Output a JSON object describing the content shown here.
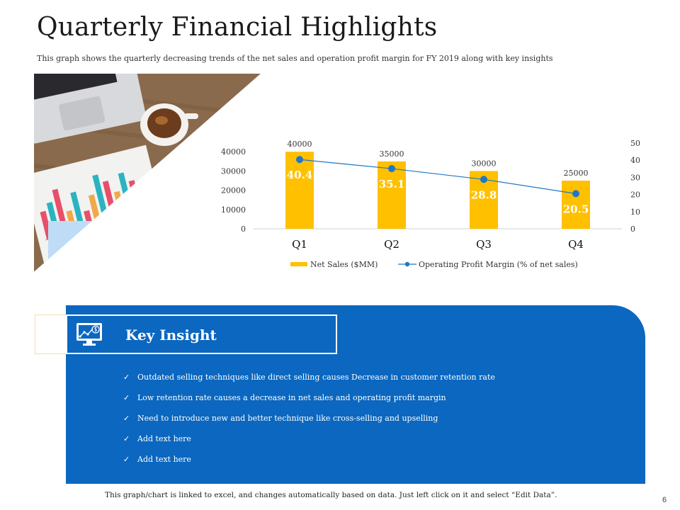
{
  "slide": {
    "title": "Quarterly Financial Highlights",
    "subtitle": "This graph shows the quarterly decreasing trends of the net sales and operation profit margin for FY 2019 along with key insights",
    "footer": "This graph/chart is linked to excel, and changes automatically based on data. Just left click on it and select “Edit Data”.",
    "page_number": "6"
  },
  "insight": {
    "title": "Key Insight",
    "icon": "monitor-dollar-chart-icon",
    "bullets": [
      "Outdated selling techniques like direct selling causes Decrease in customer retention rate",
      "Low retention rate causes a decrease in net sales and operating profit margin",
      "Need to introduce new and better technique like cross-selling and upselling",
      "Add text here",
      "Add text here"
    ],
    "check_mark": "✓"
  },
  "colors": {
    "accent_blue": "#0b67bf",
    "bar_gold": "#ffc000",
    "line_blue": "#1f77c6"
  },
  "chart_data": {
    "type": "bar",
    "categories": [
      "Q1",
      "Q2",
      "Q3",
      "Q4"
    ],
    "series": [
      {
        "name": "Net Sales ($MM)",
        "type": "bar",
        "axis": "left",
        "values": [
          40000,
          35000,
          30000,
          25000
        ],
        "data_labels": [
          "40000",
          "35000",
          "30000",
          "25000"
        ]
      },
      {
        "name": "Operating Profit Margin (% of net sales)",
        "type": "line",
        "axis": "right",
        "values": [
          40.4,
          35.1,
          28.8,
          20.5
        ],
        "data_labels": [
          "40.4",
          "35.1",
          "28.8",
          "20.5"
        ]
      }
    ],
    "y_left": {
      "ticks": [
        "0",
        "10000",
        "20000",
        "30000",
        "40000"
      ],
      "range": [
        0,
        44500
      ]
    },
    "y_right": {
      "ticks": [
        "0",
        "10",
        "20",
        "30",
        "40",
        "50"
      ],
      "range": [
        0,
        50
      ]
    },
    "legend_position": "bottom",
    "grid": false
  }
}
